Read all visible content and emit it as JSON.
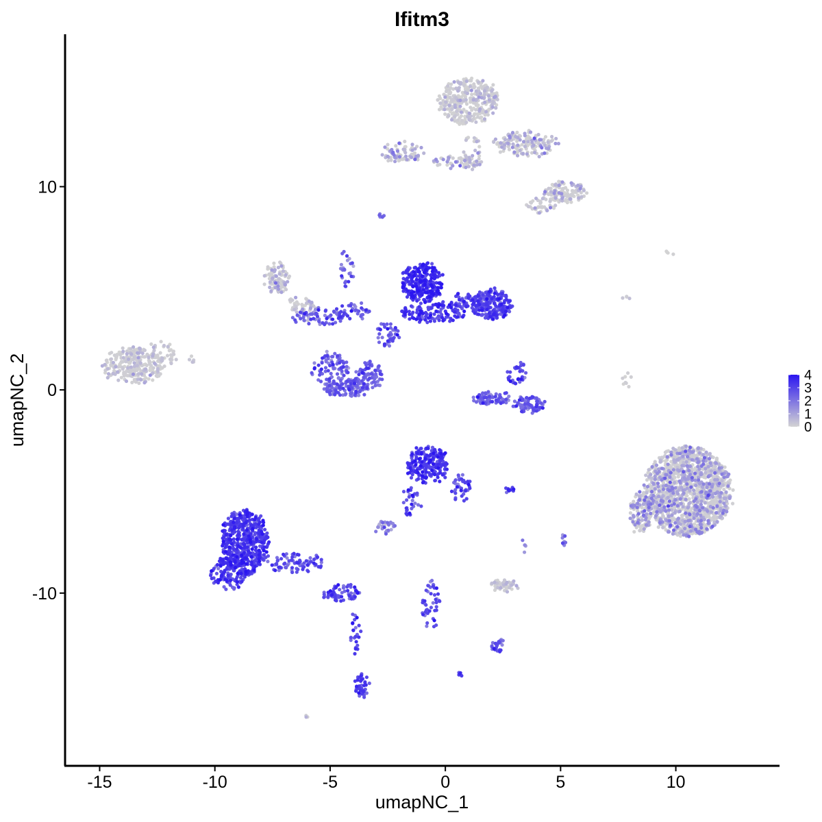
{
  "chart_data": {
    "type": "scatter",
    "title": "Ifitm3",
    "xlabel": "umapNC_1",
    "ylabel": "umapNC_2",
    "xlim": [
      -16.5,
      14.5
    ],
    "ylim": [
      -18.5,
      17.5
    ],
    "xticks": [
      -15,
      -10,
      -5,
      0,
      5,
      10
    ],
    "xtick_labels": [
      "-15",
      "-10",
      "-5",
      "0",
      "5",
      "10"
    ],
    "yticks": [
      -10,
      0,
      10
    ],
    "ytick_labels": [
      "-10",
      "0",
      "10"
    ],
    "grid": false,
    "legend": {
      "placement": "right",
      "type": "colorbar",
      "min": 0,
      "max": 4,
      "ticks": [
        0,
        1,
        2,
        3,
        4
      ],
      "tick_labels": [
        "0",
        "1",
        "2",
        "3",
        "4"
      ],
      "low_color": "#d3d3d3",
      "high_color": "#2b16f0"
    },
    "clusters": [
      {
        "cx": -13.5,
        "cy": 1.2,
        "rx": 1.3,
        "ry": 0.9,
        "n": 260,
        "expr": 0.25,
        "spread": 0.4
      },
      {
        "cx": -12.3,
        "cy": 1.6,
        "rx": 0.6,
        "ry": 0.8,
        "n": 40,
        "expr": 0.15,
        "spread": 0.3
      },
      {
        "cx": -7.3,
        "cy": 5.5,
        "rx": 0.5,
        "ry": 0.8,
        "n": 90,
        "expr": 0.6,
        "spread": 0.5
      },
      {
        "cx": -6.2,
        "cy": 4.2,
        "rx": 0.6,
        "ry": 0.4,
        "n": 40,
        "expr": 0.5,
        "spread": 0.5
      },
      {
        "cx": -5.5,
        "cy": 3.6,
        "rx": 1.2,
        "ry": 0.4,
        "n": 60,
        "expr": 2.3,
        "spread": 0.7
      },
      {
        "cx": -4.0,
        "cy": 3.9,
        "rx": 0.8,
        "ry": 0.4,
        "n": 40,
        "expr": 2.5,
        "spread": 0.6
      },
      {
        "cx": -4.3,
        "cy": 6.0,
        "rx": 0.3,
        "ry": 1.0,
        "n": 25,
        "expr": 2.0,
        "spread": 0.8
      },
      {
        "cx": -2.5,
        "cy": 2.7,
        "rx": 0.5,
        "ry": 0.6,
        "n": 40,
        "expr": 2.6,
        "spread": 0.7
      },
      {
        "cx": -1.0,
        "cy": 5.3,
        "rx": 0.9,
        "ry": 1.0,
        "n": 280,
        "expr": 3.4,
        "spread": 0.5
      },
      {
        "cx": -0.5,
        "cy": 3.8,
        "rx": 1.4,
        "ry": 0.5,
        "n": 130,
        "expr": 3.2,
        "spread": 0.5
      },
      {
        "cx": 2.0,
        "cy": 4.2,
        "rx": 0.9,
        "ry": 0.7,
        "n": 220,
        "expr": 2.9,
        "spread": 0.5
      },
      {
        "cx": 1.0,
        "cy": 4.4,
        "rx": 0.6,
        "ry": 0.4,
        "n": 50,
        "expr": 2.7,
        "spread": 0.5
      },
      {
        "cx": -5.0,
        "cy": 1.0,
        "rx": 0.8,
        "ry": 0.8,
        "n": 90,
        "expr": 2.4,
        "spread": 0.6
      },
      {
        "cx": -4.3,
        "cy": 0.1,
        "rx": 1.0,
        "ry": 0.4,
        "n": 110,
        "expr": 2.3,
        "spread": 0.6
      },
      {
        "cx": -3.3,
        "cy": 0.7,
        "rx": 0.6,
        "ry": 0.7,
        "n": 70,
        "expr": 2.4,
        "spread": 0.6
      },
      {
        "cx": 2.0,
        "cy": -0.4,
        "rx": 0.8,
        "ry": 0.3,
        "n": 70,
        "expr": 2.3,
        "spread": 0.6
      },
      {
        "cx": 3.6,
        "cy": -0.7,
        "rx": 0.7,
        "ry": 0.4,
        "n": 80,
        "expr": 2.4,
        "spread": 0.6
      },
      {
        "cx": 3.1,
        "cy": 0.8,
        "rx": 0.4,
        "ry": 0.6,
        "n": 35,
        "expr": 2.6,
        "spread": 0.6
      },
      {
        "cx": -0.8,
        "cy": -3.7,
        "rx": 0.9,
        "ry": 0.9,
        "n": 200,
        "expr": 3.2,
        "spread": 0.5
      },
      {
        "cx": 0.7,
        "cy": -4.8,
        "rx": 0.4,
        "ry": 0.6,
        "n": 40,
        "expr": 2.6,
        "spread": 0.6
      },
      {
        "cx": -1.5,
        "cy": -5.5,
        "rx": 0.4,
        "ry": 0.8,
        "n": 30,
        "expr": 2.8,
        "spread": 0.6
      },
      {
        "cx": -2.6,
        "cy": -6.8,
        "rx": 0.5,
        "ry": 0.3,
        "n": 30,
        "expr": 1.6,
        "spread": 0.7
      },
      {
        "cx": -8.7,
        "cy": -7.5,
        "rx": 1.0,
        "ry": 1.6,
        "n": 520,
        "expr": 3.1,
        "spread": 0.5
      },
      {
        "cx": -9.4,
        "cy": -9.0,
        "rx": 0.8,
        "ry": 0.8,
        "n": 120,
        "expr": 3.1,
        "spread": 0.5
      },
      {
        "cx": -6.5,
        "cy": -8.5,
        "rx": 1.2,
        "ry": 0.5,
        "n": 80,
        "expr": 2.7,
        "spread": 0.6
      },
      {
        "cx": -4.5,
        "cy": -10.0,
        "rx": 0.8,
        "ry": 0.4,
        "n": 70,
        "expr": 2.8,
        "spread": 0.6
      },
      {
        "cx": -3.9,
        "cy": -12.0,
        "rx": 0.2,
        "ry": 1.0,
        "n": 25,
        "expr": 3.0,
        "spread": 0.6
      },
      {
        "cx": -3.6,
        "cy": -14.5,
        "rx": 0.3,
        "ry": 0.6,
        "n": 45,
        "expr": 3.0,
        "spread": 0.6
      },
      {
        "cx": -0.6,
        "cy": -10.7,
        "rx": 0.4,
        "ry": 1.3,
        "n": 45,
        "expr": 2.6,
        "spread": 0.6
      },
      {
        "cx": 2.6,
        "cy": -9.6,
        "rx": 0.6,
        "ry": 0.3,
        "n": 50,
        "expr": 0.3,
        "spread": 0.4
      },
      {
        "cx": 2.3,
        "cy": -12.6,
        "rx": 0.3,
        "ry": 0.3,
        "n": 25,
        "expr": 2.5,
        "spread": 0.6
      },
      {
        "cx": 2.8,
        "cy": -4.9,
        "rx": 0.3,
        "ry": 0.1,
        "n": 10,
        "expr": 3.0,
        "spread": 0.5
      },
      {
        "cx": 0.6,
        "cy": -14.0,
        "rx": 0.1,
        "ry": 0.1,
        "n": 5,
        "expr": 3.0,
        "spread": 0.3
      },
      {
        "cx": 1.0,
        "cy": 14.2,
        "rx": 1.3,
        "ry": 1.1,
        "n": 340,
        "expr": 0.3,
        "spread": 0.4
      },
      {
        "cx": 3.5,
        "cy": 12.1,
        "rx": 1.4,
        "ry": 0.6,
        "n": 160,
        "expr": 0.6,
        "spread": 0.6
      },
      {
        "cx": 5.2,
        "cy": 9.7,
        "rx": 0.9,
        "ry": 0.5,
        "n": 120,
        "expr": 0.6,
        "spread": 0.6
      },
      {
        "cx": 4.2,
        "cy": 9.1,
        "rx": 0.6,
        "ry": 0.4,
        "n": 40,
        "expr": 0.4,
        "spread": 0.5
      },
      {
        "cx": -1.9,
        "cy": 11.7,
        "rx": 0.9,
        "ry": 0.5,
        "n": 80,
        "expr": 1.0,
        "spread": 0.6
      },
      {
        "cx": 0.3,
        "cy": 11.2,
        "rx": 0.9,
        "ry": 0.3,
        "n": 40,
        "expr": 0.9,
        "spread": 0.6
      },
      {
        "cx": 1.2,
        "cy": 11.7,
        "rx": 0.4,
        "ry": 0.9,
        "n": 40,
        "expr": 0.6,
        "spread": 0.5
      },
      {
        "cx": -2.8,
        "cy": 8.6,
        "rx": 0.1,
        "ry": 0.1,
        "n": 6,
        "expr": 2.0,
        "spread": 0.5
      },
      {
        "cx": 10.5,
        "cy": -5.0,
        "rx": 1.9,
        "ry": 2.2,
        "n": 1500,
        "expr": 0.8,
        "spread": 0.7
      },
      {
        "cx": 8.5,
        "cy": -6.0,
        "rx": 0.5,
        "ry": 1.0,
        "n": 120,
        "expr": 0.9,
        "spread": 0.7
      },
      {
        "cx": 7.9,
        "cy": 0.3,
        "rx": 0.2,
        "ry": 0.6,
        "n": 8,
        "expr": 0.1,
        "spread": 0.2
      },
      {
        "cx": 7.8,
        "cy": 4.6,
        "rx": 0.2,
        "ry": 0.3,
        "n": 4,
        "expr": 0.1,
        "spread": 0.2
      },
      {
        "cx": 9.7,
        "cy": 6.7,
        "rx": 0.2,
        "ry": 0.1,
        "n": 4,
        "expr": 0.1,
        "spread": 0.2
      },
      {
        "cx": 5.1,
        "cy": -7.4,
        "rx": 0.1,
        "ry": 0.4,
        "n": 8,
        "expr": 1.8,
        "spread": 0.6
      },
      {
        "cx": 3.4,
        "cy": -7.7,
        "rx": 0.1,
        "ry": 0.3,
        "n": 5,
        "expr": 1.5,
        "spread": 0.6
      },
      {
        "cx": -6.0,
        "cy": -16.0,
        "rx": 0.1,
        "ry": 0.1,
        "n": 3,
        "expr": 0.6,
        "spread": 0.4
      },
      {
        "cx": -11.0,
        "cy": 1.4,
        "rx": 0.3,
        "ry": 0.3,
        "n": 5,
        "expr": 0.1,
        "spread": 0.2
      }
    ]
  }
}
